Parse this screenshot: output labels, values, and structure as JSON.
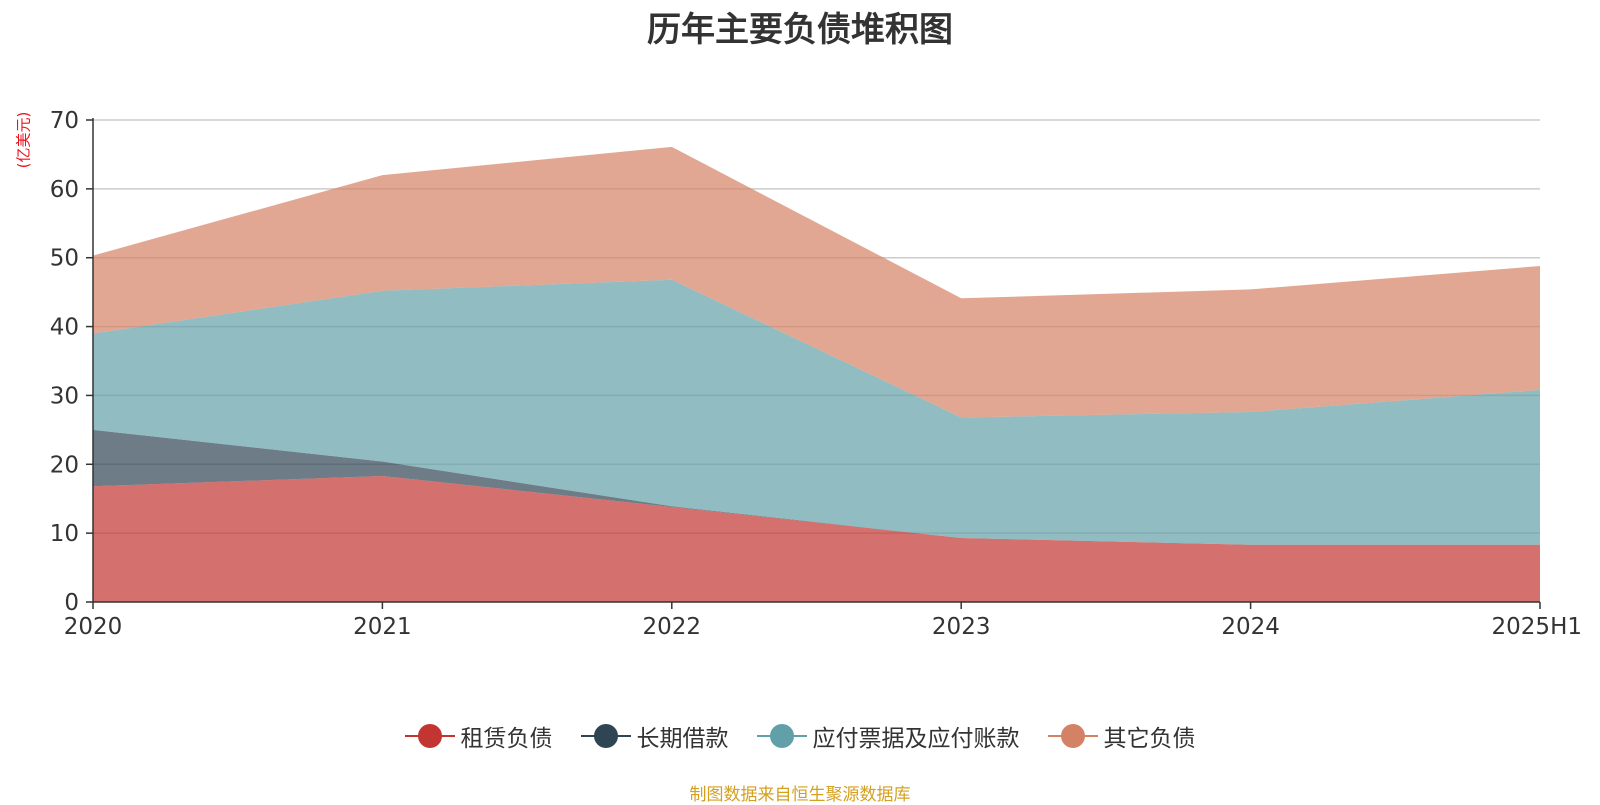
{
  "chart_data": {
    "type": "area",
    "stacked": true,
    "title": "历年主要负债堆积图",
    "unit_label": "(亿美元)",
    "categories": [
      "2020",
      "2021",
      "2022",
      "2023",
      "2024",
      "2025H1"
    ],
    "y_ticks": [
      "0",
      "10",
      "20",
      "30",
      "40",
      "50",
      "60",
      "70"
    ],
    "ylim": [
      0,
      70
    ],
    "grid": true,
    "legend_position": "bottom",
    "series": [
      {
        "name": "租赁负债",
        "color": "#c23531",
        "values": [
          16.8,
          18.3,
          13.8,
          9.3,
          8.3,
          8.3
        ]
      },
      {
        "name": "长期借款",
        "color": "#2f4554",
        "values": [
          8.2,
          2.1,
          0.1,
          0,
          0,
          0
        ]
      },
      {
        "name": "应付票据及应付账款",
        "color": "#61a0a8",
        "values": [
          14,
          24.8,
          32.9,
          17.5,
          19.3,
          22.5
        ]
      },
      {
        "name": "其它负债",
        "color": "#d48265",
        "values": [
          11.3,
          16.8,
          19.3,
          17.3,
          17.8,
          18
        ]
      }
    ],
    "source_note": "制图数据来自恒生聚源数据库"
  }
}
